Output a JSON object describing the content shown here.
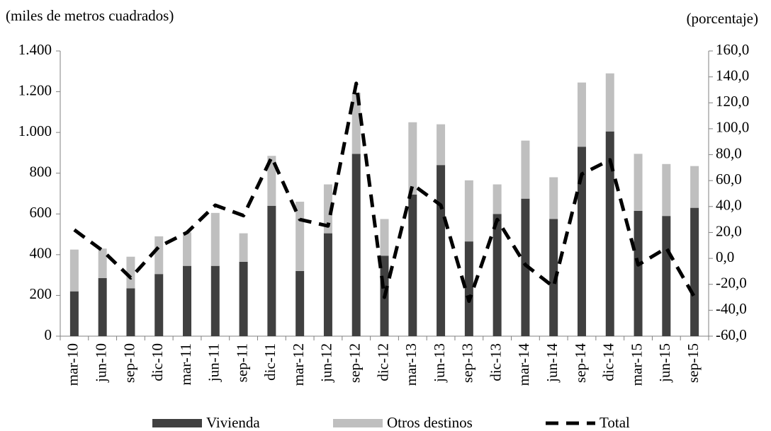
{
  "chart_data": {
    "type": "bar-line",
    "y_label": "(miles  de metros cuadrados)",
    "y2_label": "(porcentaje)",
    "categories": [
      "mar-10",
      "jun-10",
      "sep-10",
      "dic-10",
      "mar-11",
      "jun-11",
      "sep-11",
      "dic-11",
      "mar-12",
      "jun-12",
      "sep-12",
      "dic-12",
      "mar-13",
      "jun-13",
      "sep-13",
      "dic-13",
      "mar-14",
      "jun-14",
      "sep-14",
      "dic-14",
      "mar-15",
      "jun-15",
      "sep-15"
    ],
    "series": [
      {
        "name": "Vivienda",
        "type": "bar",
        "color": "#404040",
        "values": [
          220,
          285,
          235,
          305,
          345,
          345,
          365,
          640,
          320,
          505,
          895,
          395,
          695,
          840,
          465,
          600,
          675,
          575,
          930,
          1005,
          615,
          590,
          630
        ]
      },
      {
        "name": "Otros destinos",
        "type": "bar",
        "color": "#bfbfbf",
        "values": [
          205,
          145,
          155,
          185,
          165,
          260,
          140,
          245,
          340,
          240,
          300,
          180,
          355,
          200,
          300,
          145,
          285,
          205,
          315,
          285,
          280,
          255,
          205
        ]
      },
      {
        "name": "Total",
        "type": "line",
        "axis": "y2",
        "color": "#000000",
        "values": [
          22,
          6,
          -15,
          9,
          20,
          41,
          33,
          78,
          30,
          25,
          135,
          -30,
          57,
          41,
          -33,
          30,
          -5,
          -22,
          65,
          76,
          -5,
          8,
          -30
        ]
      }
    ],
    "ylim": [
      0,
      1400
    ],
    "yticks": [
      0,
      200,
      400,
      600,
      800,
      {
        "value": 1000,
        "label": "1.000"
      },
      {
        "value": 1200,
        "label": "1.200"
      },
      {
        "value": 1400,
        "label": "1.400"
      }
    ],
    "y2lim": [
      -60,
      160
    ],
    "y2ticks": [
      {
        "value": -60,
        "label": "-60,0"
      },
      {
        "value": -40,
        "label": "-40,0"
      },
      {
        "value": -20,
        "label": "-20,0"
      },
      {
        "value": 0,
        "label": "0,0"
      },
      {
        "value": 20,
        "label": "20,0"
      },
      {
        "value": 40,
        "label": "40,0"
      },
      {
        "value": 60,
        "label": "60,0"
      },
      {
        "value": 80,
        "label": "80,0"
      },
      {
        "value": 100,
        "label": "100,0"
      },
      {
        "value": 120,
        "label": "120,0"
      },
      {
        "value": 140,
        "label": "140,0"
      },
      {
        "value": 160,
        "label": "160,0"
      }
    ],
    "grid": false,
    "legend": "bottom"
  }
}
